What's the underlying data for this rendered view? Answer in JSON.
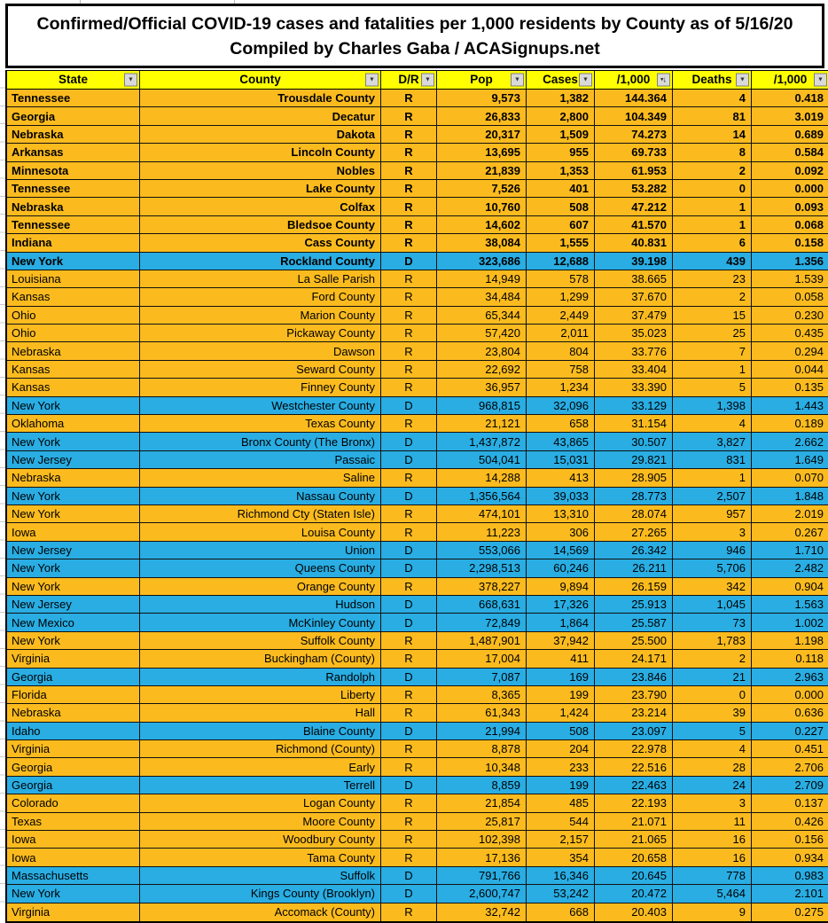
{
  "title": {
    "line1": "Confirmed/Official COVID-19 cases and fatalities per 1,000 residents by County as of 5/16/20",
    "line2": "Compiled by Charles Gaba / ACASignups.net"
  },
  "colors": {
    "republican_row": "#FBBB1E",
    "democrat_row": "#29ADE3",
    "header_yellow": "#FFFF00",
    "grid_black": "#111111"
  },
  "columns": [
    {
      "label": "State",
      "filter": "dropdown"
    },
    {
      "label": "County",
      "filter": "dropdown"
    },
    {
      "label": "D/R",
      "filter": "dropdown"
    },
    {
      "label": "Pop",
      "filter": "dropdown"
    },
    {
      "label": "Cases",
      "filter": "dropdown"
    },
    {
      "label": "/1,000",
      "filter": "sorted-desc"
    },
    {
      "label": "Deaths",
      "filter": "dropdown"
    },
    {
      "label": "/1,000",
      "filter": "dropdown"
    }
  ],
  "rows": [
    {
      "state": "Tennessee",
      "county": "Trousdale County",
      "dr": "R",
      "pop": "9,573",
      "cases": "1,382",
      "per_1000": "144.364",
      "deaths": "4",
      "deaths_per_1000": "0.418",
      "bold": true
    },
    {
      "state": "Georgia",
      "county": "Decatur",
      "dr": "R",
      "pop": "26,833",
      "cases": "2,800",
      "per_1000": "104.349",
      "deaths": "81",
      "deaths_per_1000": "3.019",
      "bold": true
    },
    {
      "state": "Nebraska",
      "county": "Dakota",
      "dr": "R",
      "pop": "20,317",
      "cases": "1,509",
      "per_1000": "74.273",
      "deaths": "14",
      "deaths_per_1000": "0.689",
      "bold": true
    },
    {
      "state": "Arkansas",
      "county": "Lincoln County",
      "dr": "R",
      "pop": "13,695",
      "cases": "955",
      "per_1000": "69.733",
      "deaths": "8",
      "deaths_per_1000": "0.584",
      "bold": true
    },
    {
      "state": "Minnesota",
      "county": "Nobles",
      "dr": "R",
      "pop": "21,839",
      "cases": "1,353",
      "per_1000": "61.953",
      "deaths": "2",
      "deaths_per_1000": "0.092",
      "bold": true
    },
    {
      "state": "Tennessee",
      "county": "Lake County",
      "dr": "R",
      "pop": "7,526",
      "cases": "401",
      "per_1000": "53.282",
      "deaths": "0",
      "deaths_per_1000": "0.000",
      "bold": true
    },
    {
      "state": "Nebraska",
      "county": "Colfax",
      "dr": "R",
      "pop": "10,760",
      "cases": "508",
      "per_1000": "47.212",
      "deaths": "1",
      "deaths_per_1000": "0.093",
      "bold": true
    },
    {
      "state": "Tennessee",
      "county": "Bledsoe County",
      "dr": "R",
      "pop": "14,602",
      "cases": "607",
      "per_1000": "41.570",
      "deaths": "1",
      "deaths_per_1000": "0.068",
      "bold": true
    },
    {
      "state": "Indiana",
      "county": "Cass County",
      "dr": "R",
      "pop": "38,084",
      "cases": "1,555",
      "per_1000": "40.831",
      "deaths": "6",
      "deaths_per_1000": "0.158",
      "bold": true
    },
    {
      "state": "New York",
      "county": "Rockland County",
      "dr": "D",
      "pop": "323,686",
      "cases": "12,688",
      "per_1000": "39.198",
      "deaths": "439",
      "deaths_per_1000": "1.356",
      "bold": true
    },
    {
      "state": "Louisiana",
      "county": "La Salle Parish",
      "dr": "R",
      "pop": "14,949",
      "cases": "578",
      "per_1000": "38.665",
      "deaths": "23",
      "deaths_per_1000": "1.539",
      "bold": false
    },
    {
      "state": "Kansas",
      "county": "Ford County",
      "dr": "R",
      "pop": "34,484",
      "cases": "1,299",
      "per_1000": "37.670",
      "deaths": "2",
      "deaths_per_1000": "0.058",
      "bold": false
    },
    {
      "state": "Ohio",
      "county": "Marion County",
      "dr": "R",
      "pop": "65,344",
      "cases": "2,449",
      "per_1000": "37.479",
      "deaths": "15",
      "deaths_per_1000": "0.230",
      "bold": false
    },
    {
      "state": "Ohio",
      "county": "Pickaway County",
      "dr": "R",
      "pop": "57,420",
      "cases": "2,011",
      "per_1000": "35.023",
      "deaths": "25",
      "deaths_per_1000": "0.435",
      "bold": false
    },
    {
      "state": "Nebraska",
      "county": "Dawson",
      "dr": "R",
      "pop": "23,804",
      "cases": "804",
      "per_1000": "33.776",
      "deaths": "7",
      "deaths_per_1000": "0.294",
      "bold": false
    },
    {
      "state": "Kansas",
      "county": "Seward County",
      "dr": "R",
      "pop": "22,692",
      "cases": "758",
      "per_1000": "33.404",
      "deaths": "1",
      "deaths_per_1000": "0.044",
      "bold": false
    },
    {
      "state": "Kansas",
      "county": "Finney County",
      "dr": "R",
      "pop": "36,957",
      "cases": "1,234",
      "per_1000": "33.390",
      "deaths": "5",
      "deaths_per_1000": "0.135",
      "bold": false
    },
    {
      "state": "New York",
      "county": "Westchester County",
      "dr": "D",
      "pop": "968,815",
      "cases": "32,096",
      "per_1000": "33.129",
      "deaths": "1,398",
      "deaths_per_1000": "1.443",
      "bold": false
    },
    {
      "state": "Oklahoma",
      "county": "Texas County",
      "dr": "R",
      "pop": "21,121",
      "cases": "658",
      "per_1000": "31.154",
      "deaths": "4",
      "deaths_per_1000": "0.189",
      "bold": false
    },
    {
      "state": "New York",
      "county": "Bronx County (The Bronx)",
      "dr": "D",
      "pop": "1,437,872",
      "cases": "43,865",
      "per_1000": "30.507",
      "deaths": "3,827",
      "deaths_per_1000": "2.662",
      "bold": false
    },
    {
      "state": "New Jersey",
      "county": "Passaic",
      "dr": "D",
      "pop": "504,041",
      "cases": "15,031",
      "per_1000": "29.821",
      "deaths": "831",
      "deaths_per_1000": "1.649",
      "bold": false
    },
    {
      "state": "Nebraska",
      "county": "Saline",
      "dr": "R",
      "pop": "14,288",
      "cases": "413",
      "per_1000": "28.905",
      "deaths": "1",
      "deaths_per_1000": "0.070",
      "bold": false
    },
    {
      "state": "New York",
      "county": "Nassau County",
      "dr": "D",
      "pop": "1,356,564",
      "cases": "39,033",
      "per_1000": "28.773",
      "deaths": "2,507",
      "deaths_per_1000": "1.848",
      "bold": false
    },
    {
      "state": "New York",
      "county": "Richmond Cty (Staten Isle)",
      "dr": "R",
      "pop": "474,101",
      "cases": "13,310",
      "per_1000": "28.074",
      "deaths": "957",
      "deaths_per_1000": "2.019",
      "bold": false
    },
    {
      "state": "Iowa",
      "county": "Louisa County",
      "dr": "R",
      "pop": "11,223",
      "cases": "306",
      "per_1000": "27.265",
      "deaths": "3",
      "deaths_per_1000": "0.267",
      "bold": false
    },
    {
      "state": "New Jersey",
      "county": "Union",
      "dr": "D",
      "pop": "553,066",
      "cases": "14,569",
      "per_1000": "26.342",
      "deaths": "946",
      "deaths_per_1000": "1.710",
      "bold": false
    },
    {
      "state": "New York",
      "county": "Queens County",
      "dr": "D",
      "pop": "2,298,513",
      "cases": "60,246",
      "per_1000": "26.211",
      "deaths": "5,706",
      "deaths_per_1000": "2.482",
      "bold": false
    },
    {
      "state": "New York",
      "county": "Orange County",
      "dr": "R",
      "pop": "378,227",
      "cases": "9,894",
      "per_1000": "26.159",
      "deaths": "342",
      "deaths_per_1000": "0.904",
      "bold": false
    },
    {
      "state": "New Jersey",
      "county": "Hudson",
      "dr": "D",
      "pop": "668,631",
      "cases": "17,326",
      "per_1000": "25.913",
      "deaths": "1,045",
      "deaths_per_1000": "1.563",
      "bold": false
    },
    {
      "state": "New Mexico",
      "county": "McKinley County",
      "dr": "D",
      "pop": "72,849",
      "cases": "1,864",
      "per_1000": "25.587",
      "deaths": "73",
      "deaths_per_1000": "1.002",
      "bold": false
    },
    {
      "state": "New York",
      "county": "Suffolk County",
      "dr": "R",
      "pop": "1,487,901",
      "cases": "37,942",
      "per_1000": "25.500",
      "deaths": "1,783",
      "deaths_per_1000": "1.198",
      "bold": false
    },
    {
      "state": "Virginia",
      "county": "Buckingham (County)",
      "dr": "R",
      "pop": "17,004",
      "cases": "411",
      "per_1000": "24.171",
      "deaths": "2",
      "deaths_per_1000": "0.118",
      "bold": false
    },
    {
      "state": "Georgia",
      "county": "Randolph",
      "dr": "D",
      "pop": "7,087",
      "cases": "169",
      "per_1000": "23.846",
      "deaths": "21",
      "deaths_per_1000": "2.963",
      "bold": false
    },
    {
      "state": "Florida",
      "county": "Liberty",
      "dr": "R",
      "pop": "8,365",
      "cases": "199",
      "per_1000": "23.790",
      "deaths": "0",
      "deaths_per_1000": "0.000",
      "bold": false
    },
    {
      "state": "Nebraska",
      "county": "Hall",
      "dr": "R",
      "pop": "61,343",
      "cases": "1,424",
      "per_1000": "23.214",
      "deaths": "39",
      "deaths_per_1000": "0.636",
      "bold": false
    },
    {
      "state": "Idaho",
      "county": "Blaine County",
      "dr": "D",
      "pop": "21,994",
      "cases": "508",
      "per_1000": "23.097",
      "deaths": "5",
      "deaths_per_1000": "0.227",
      "bold": false
    },
    {
      "state": "Virginia",
      "county": "Richmond (County)",
      "dr": "R",
      "pop": "8,878",
      "cases": "204",
      "per_1000": "22.978",
      "deaths": "4",
      "deaths_per_1000": "0.451",
      "bold": false
    },
    {
      "state": "Georgia",
      "county": "Early",
      "dr": "R",
      "pop": "10,348",
      "cases": "233",
      "per_1000": "22.516",
      "deaths": "28",
      "deaths_per_1000": "2.706",
      "bold": false
    },
    {
      "state": "Georgia",
      "county": "Terrell",
      "dr": "D",
      "pop": "8,859",
      "cases": "199",
      "per_1000": "22.463",
      "deaths": "24",
      "deaths_per_1000": "2.709",
      "bold": false
    },
    {
      "state": "Colorado",
      "county": "Logan County",
      "dr": "R",
      "pop": "21,854",
      "cases": "485",
      "per_1000": "22.193",
      "deaths": "3",
      "deaths_per_1000": "0.137",
      "bold": false
    },
    {
      "state": "Texas",
      "county": "Moore County",
      "dr": "R",
      "pop": "25,817",
      "cases": "544",
      "per_1000": "21.071",
      "deaths": "11",
      "deaths_per_1000": "0.426",
      "bold": false
    },
    {
      "state": "Iowa",
      "county": "Woodbury County",
      "dr": "R",
      "pop": "102,398",
      "cases": "2,157",
      "per_1000": "21.065",
      "deaths": "16",
      "deaths_per_1000": "0.156",
      "bold": false
    },
    {
      "state": "Iowa",
      "county": "Tama County",
      "dr": "R",
      "pop": "17,136",
      "cases": "354",
      "per_1000": "20.658",
      "deaths": "16",
      "deaths_per_1000": "0.934",
      "bold": false
    },
    {
      "state": "Massachusetts",
      "county": "Suffolk",
      "dr": "D",
      "pop": "791,766",
      "cases": "16,346",
      "per_1000": "20.645",
      "deaths": "778",
      "deaths_per_1000": "0.983",
      "bold": false
    },
    {
      "state": "New York",
      "county": "Kings County (Brooklyn)",
      "dr": "D",
      "pop": "2,600,747",
      "cases": "53,242",
      "per_1000": "20.472",
      "deaths": "5,464",
      "deaths_per_1000": "2.101",
      "bold": false
    },
    {
      "state": "Virginia",
      "county": "Accomack (County)",
      "dr": "R",
      "pop": "32,742",
      "cases": "668",
      "per_1000": "20.403",
      "deaths": "9",
      "deaths_per_1000": "0.275",
      "bold": false
    }
  ]
}
